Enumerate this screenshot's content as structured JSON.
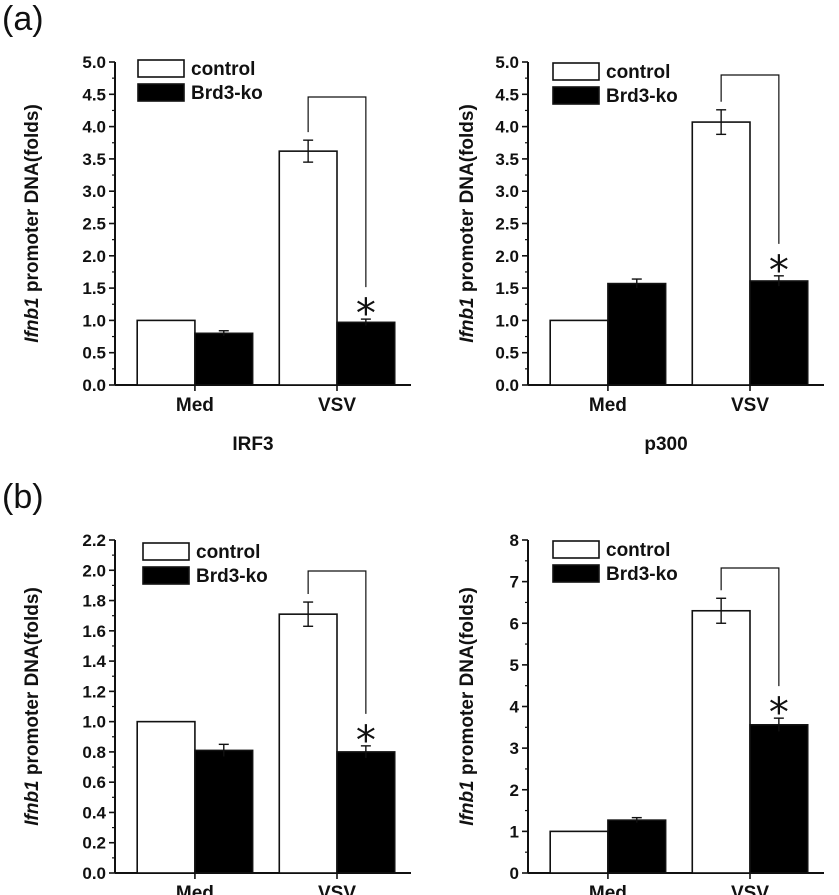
{
  "panels": {
    "a": "(a)",
    "b": "(b)"
  },
  "chart_data": [
    {
      "type": "bar",
      "panel": "(a)",
      "title": "",
      "xlabel": "IRF3",
      "ylabel_italic": "Ifnb1",
      "ylabel_rest": " promoter DNA(folds)",
      "categories": [
        "Med",
        "VSV"
      ],
      "ylim": [
        0,
        5.0
      ],
      "ticks": [
        "0.0",
        "0.5",
        "1.0",
        "1.5",
        "2.0",
        "2.5",
        "3.0",
        "3.5",
        "4.0",
        "4.5",
        "5.0"
      ],
      "series": [
        {
          "name": "control",
          "fill": "#ffffff",
          "values": [
            1.0,
            3.62
          ],
          "errors": [
            0,
            0.17
          ]
        },
        {
          "name": "Brd3-ko",
          "fill": "#000000",
          "values": [
            0.8,
            0.97
          ],
          "errors": [
            0.04,
            0.05
          ]
        }
      ],
      "significance": {
        "marker": "*",
        "category": "VSV"
      }
    },
    {
      "type": "bar",
      "panel": "(a)",
      "title": "",
      "xlabel": "p300",
      "ylabel_italic": "Ifnb1",
      "ylabel_rest": " promoter DNA(folds)",
      "categories": [
        "Med",
        "VSV"
      ],
      "ylim": [
        0,
        5.0
      ],
      "ticks": [
        "0.0",
        "0.5",
        "1.0",
        "1.5",
        "2.0",
        "2.5",
        "3.0",
        "3.5",
        "4.0",
        "4.5",
        "5.0"
      ],
      "series": [
        {
          "name": "control",
          "fill": "#ffffff",
          "values": [
            1.0,
            4.07
          ],
          "errors": [
            0,
            0.19
          ]
        },
        {
          "name": "Brd3-ko",
          "fill": "#000000",
          "values": [
            1.57,
            1.61
          ],
          "errors": [
            0.07,
            0.08
          ]
        }
      ],
      "significance": {
        "marker": "*",
        "category": "VSV"
      }
    },
    {
      "type": "bar",
      "panel": "(b)",
      "title": "",
      "xlabel": "",
      "ylabel_italic": "Ifnb1",
      "ylabel_rest": " promoter DNA(folds)",
      "categories": [
        "Med",
        "VSV"
      ],
      "ylim": [
        0,
        2.2
      ],
      "ticks": [
        "0.0",
        "0.2",
        "0.4",
        "0.6",
        "0.8",
        "1.0",
        "1.2",
        "1.4",
        "1.6",
        "1.8",
        "2.0",
        "2.2"
      ],
      "series": [
        {
          "name": "control",
          "fill": "#ffffff",
          "values": [
            1.0,
            1.71
          ],
          "errors": [
            0,
            0.08
          ]
        },
        {
          "name": "Brd3-ko",
          "fill": "#000000",
          "values": [
            0.81,
            0.8
          ],
          "errors": [
            0.04,
            0.04
          ]
        }
      ],
      "significance": {
        "marker": "*",
        "category": "VSV"
      }
    },
    {
      "type": "bar",
      "panel": "(b)",
      "title": "",
      "xlabel": "",
      "ylabel_italic": "Ifnb1",
      "ylabel_rest": " promoter DNA(folds)",
      "categories": [
        "Med",
        "VSV"
      ],
      "ylim": [
        0,
        8
      ],
      "ticks": [
        "0",
        "1",
        "2",
        "3",
        "4",
        "5",
        "6",
        "7",
        "8"
      ],
      "series": [
        {
          "name": "control",
          "fill": "#ffffff",
          "values": [
            1.0,
            6.3
          ],
          "errors": [
            0,
            0.3
          ]
        },
        {
          "name": "Brd3-ko",
          "fill": "#000000",
          "values": [
            1.27,
            3.56
          ],
          "errors": [
            0.06,
            0.16
          ]
        }
      ],
      "significance": {
        "marker": "*",
        "category": "VSV"
      }
    }
  ]
}
